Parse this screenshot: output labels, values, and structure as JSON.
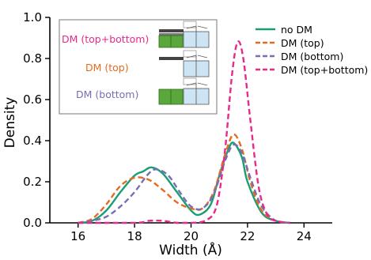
{
  "chart_data": {
    "type": "line",
    "title": "",
    "xlabel": "Width (Å)",
    "ylabel": "Density",
    "xlim": [
      15,
      25
    ],
    "ylim": [
      0,
      1.0
    ],
    "xticks": [
      16,
      18,
      20,
      22,
      24
    ],
    "yticks": [
      0.0,
      0.2,
      0.4,
      0.6,
      0.8,
      1.0
    ],
    "ytick_labels": [
      "0.0",
      "0.2",
      "0.4",
      "0.6",
      "0.8",
      "1.0"
    ],
    "grid": false,
    "legend_position": "top-right",
    "series": [
      {
        "name": "no DM",
        "color": "#1a9e77",
        "dash": "solid",
        "points": [
          [
            16,
            0.0
          ],
          [
            16.5,
            0.01
          ],
          [
            17,
            0.06
          ],
          [
            17.5,
            0.15
          ],
          [
            18,
            0.23
          ],
          [
            18.3,
            0.25
          ],
          [
            18.6,
            0.27
          ],
          [
            19,
            0.24
          ],
          [
            19.5,
            0.15
          ],
          [
            20,
            0.06
          ],
          [
            20.3,
            0.04
          ],
          [
            20.7,
            0.09
          ],
          [
            21,
            0.23
          ],
          [
            21.3,
            0.35
          ],
          [
            21.5,
            0.39
          ],
          [
            21.8,
            0.32
          ],
          [
            22,
            0.2
          ],
          [
            22.5,
            0.05
          ],
          [
            23,
            0.01
          ],
          [
            23.5,
            0.0
          ]
        ]
      },
      {
        "name": "DM (top)",
        "color": "#e66a1f",
        "dash": "dashed",
        "points": [
          [
            16,
            0.0
          ],
          [
            16.5,
            0.02
          ],
          [
            17,
            0.09
          ],
          [
            17.5,
            0.18
          ],
          [
            18,
            0.22
          ],
          [
            18.5,
            0.21
          ],
          [
            19,
            0.16
          ],
          [
            19.5,
            0.1
          ],
          [
            20,
            0.07
          ],
          [
            20.4,
            0.07
          ],
          [
            20.8,
            0.15
          ],
          [
            21.2,
            0.33
          ],
          [
            21.5,
            0.43
          ],
          [
            21.8,
            0.36
          ],
          [
            22.1,
            0.2
          ],
          [
            22.5,
            0.06
          ],
          [
            23,
            0.01
          ],
          [
            23.5,
            0.0
          ]
        ]
      },
      {
        "name": "DM (bottom)",
        "color": "#7570b3",
        "dash": "dashed",
        "points": [
          [
            16,
            0.0
          ],
          [
            16.5,
            0.01
          ],
          [
            17,
            0.03
          ],
          [
            17.5,
            0.08
          ],
          [
            18,
            0.15
          ],
          [
            18.5,
            0.24
          ],
          [
            18.8,
            0.26
          ],
          [
            19.2,
            0.23
          ],
          [
            19.6,
            0.15
          ],
          [
            20,
            0.08
          ],
          [
            20.4,
            0.07
          ],
          [
            20.8,
            0.14
          ],
          [
            21.2,
            0.3
          ],
          [
            21.5,
            0.38
          ],
          [
            21.8,
            0.34
          ],
          [
            22.1,
            0.22
          ],
          [
            22.5,
            0.08
          ],
          [
            23,
            0.01
          ],
          [
            23.5,
            0.0
          ]
        ]
      },
      {
        "name": "DM (top+bottom)",
        "color": "#e7298a",
        "dash": "dashed",
        "points": [
          [
            16,
            0.0
          ],
          [
            18,
            0.0
          ],
          [
            18.5,
            0.01
          ],
          [
            19,
            0.01
          ],
          [
            19.5,
            0.0
          ],
          [
            20,
            0.0
          ],
          [
            20.5,
            0.01
          ],
          [
            20.9,
            0.08
          ],
          [
            21.2,
            0.35
          ],
          [
            21.45,
            0.72
          ],
          [
            21.65,
            0.88
          ],
          [
            21.85,
            0.8
          ],
          [
            22.1,
            0.5
          ],
          [
            22.4,
            0.17
          ],
          [
            22.7,
            0.04
          ],
          [
            23,
            0.01
          ],
          [
            23.5,
            0.0
          ]
        ]
      }
    ],
    "inset_legend": [
      {
        "label": "DM (top+bottom)",
        "color": "#e7298a"
      },
      {
        "label": "DM (top)",
        "color": "#e66a1f"
      },
      {
        "label": "DM (bottom)",
        "color": "#7570b3"
      }
    ]
  },
  "colors": {
    "axis": "#000000",
    "inset_green": "#5aa83c",
    "inset_blue": "#cde4f4",
    "inset_dark": "#2e2e2e"
  }
}
